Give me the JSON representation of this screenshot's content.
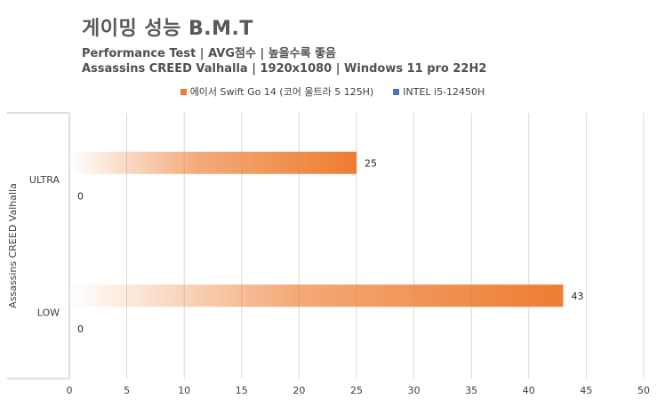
{
  "chart_data": {
    "type": "bar",
    "orientation": "horizontal",
    "title": "게이밍 성능 B.M.T",
    "subtitle_1": "Performance Test | AVG점수 | 높을수록 좋음",
    "subtitle_2": "Assassins CREED Valhalla | 1920x1080 | Windows 11 pro 22H2",
    "group_label": "Assassins CREED Valhalla",
    "categories": [
      "ULTRA",
      "LOW"
    ],
    "series": [
      {
        "name": "에이서 Swift Go 14 (코어 울트라 5 125H)",
        "values": [
          25,
          43
        ],
        "color": "#ED7D31"
      },
      {
        "name": "INTEL i5-12450H",
        "values": [
          0,
          0
        ],
        "color": "#4472C4"
      }
    ],
    "xlim": [
      0,
      50
    ],
    "xticks": [
      0,
      5,
      10,
      15,
      20,
      25,
      30,
      35,
      40,
      45,
      50
    ],
    "grid": true,
    "legend_position": "top"
  }
}
